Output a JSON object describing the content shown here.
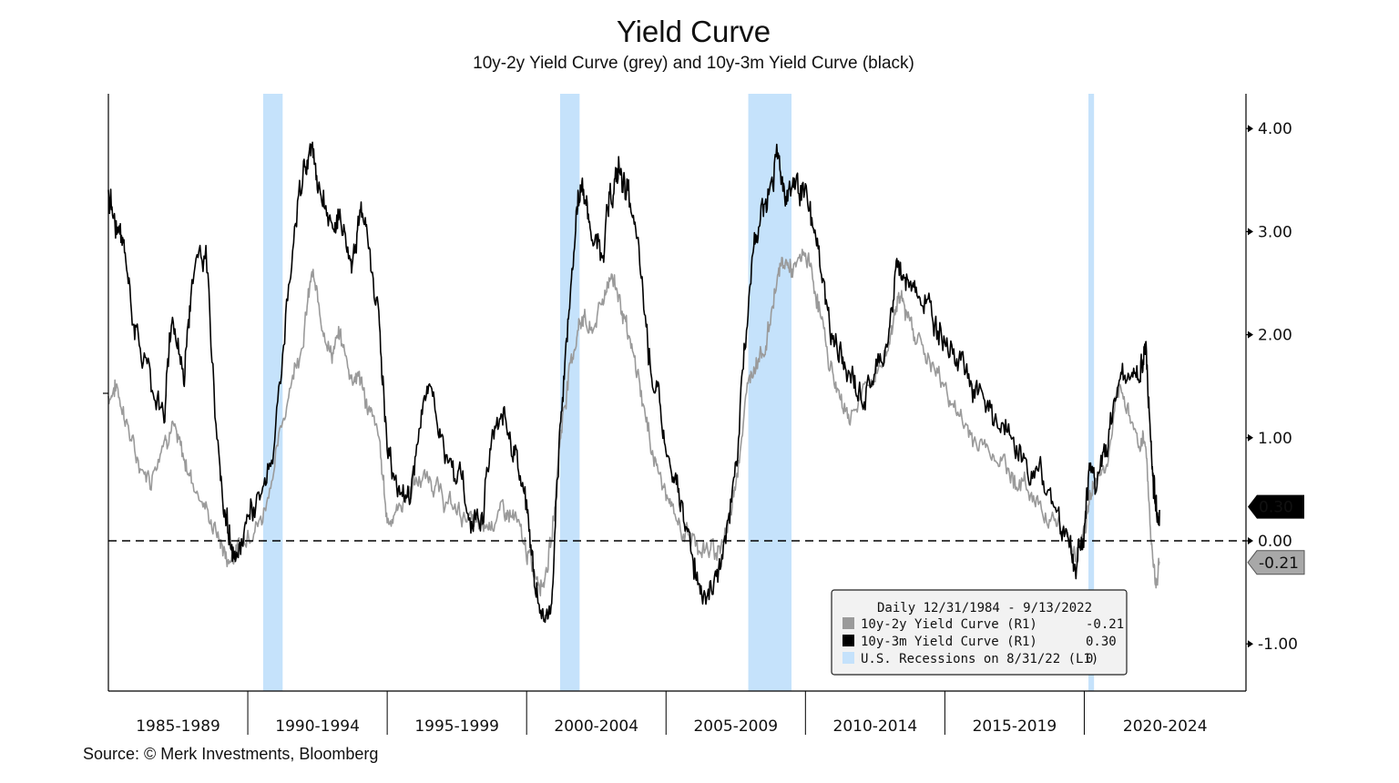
{
  "title": "Yield Curve",
  "subtitle": "10y-2y Yield Curve (grey) and 10y-3m Yield Curve (black)",
  "source": "Source: © Merk Investments, Bloomberg",
  "colors": {
    "grey_series": "#9a9a9a",
    "black_series": "#000000",
    "recession": "#c5e2fb",
    "zero_line": "#000000"
  },
  "chart_data": {
    "type": "line",
    "x_unit": "year",
    "xlim": [
      1985.0,
      2025.8
    ],
    "ylim": [
      -1.45,
      4.35
    ],
    "y_ticks": [
      4.0,
      3.0,
      2.0,
      1.0,
      0.0,
      -1.0
    ],
    "y_tick_labels": [
      "4.00",
      "3.00",
      "2.00",
      "1.00",
      "0.00",
      "-1.00"
    ],
    "reference_line": {
      "y": 0.0,
      "style": "dashed"
    },
    "categories": [
      "1985-1989",
      "1990-1994",
      "1995-1999",
      "2000-2004",
      "2005-2009",
      "2010-2014",
      "2015-2019",
      "2020-2024"
    ],
    "category_boundaries": [
      1990.0,
      1995.0,
      2000.0,
      2005.0,
      2010.0,
      2015.0,
      2020.0
    ],
    "recessions": [
      {
        "start": 1990.55,
        "end": 1991.25
      },
      {
        "start": 2001.2,
        "end": 2001.9
      },
      {
        "start": 2007.95,
        "end": 2009.5
      },
      {
        "start": 2020.15,
        "end": 2020.35
      }
    ],
    "series": [
      {
        "name": "10y-3m Yield Curve (R1)",
        "last_value": 0.3,
        "last_label": "0.30",
        "x": [
          1985.0,
          1985.3,
          1985.6,
          1986.0,
          1986.5,
          1987.0,
          1987.3,
          1987.7,
          1988.0,
          1988.5,
          1989.0,
          1989.3,
          1989.6,
          1990.0,
          1990.5,
          1991.0,
          1991.5,
          1992.0,
          1992.3,
          1992.6,
          1993.0,
          1993.3,
          1993.7,
          1994.0,
          1994.3,
          1994.7,
          1995.0,
          1995.4,
          1995.8,
          1996.2,
          1996.6,
          1997.0,
          1997.5,
          1998.0,
          1998.4,
          1998.8,
          1999.2,
          1999.6,
          2000.0,
          2000.3,
          2000.6,
          2000.9,
          2001.2,
          2001.5,
          2001.8,
          2002.0,
          2002.3,
          2002.7,
          2003.0,
          2003.3,
          2003.6,
          2004.0,
          2004.4,
          2004.8,
          2005.2,
          2005.6,
          2006.0,
          2006.4,
          2006.8,
          2007.2,
          2007.6,
          2008.0,
          2008.3,
          2008.6,
          2009.0,
          2009.3,
          2009.6,
          2010.0,
          2010.4,
          2010.8,
          2011.2,
          2011.6,
          2012.0,
          2012.5,
          2013.0,
          2013.3,
          2013.6,
          2014.0,
          2014.5,
          2015.0,
          2015.5,
          2016.0,
          2016.5,
          2017.0,
          2017.5,
          2018.0,
          2018.5,
          2019.0,
          2019.4,
          2019.7,
          2020.0,
          2020.2,
          2020.4,
          2020.8,
          2021.2,
          2021.6,
          2022.0,
          2022.2,
          2022.4,
          2022.55,
          2022.7
        ],
        "y": [
          3.4,
          3.0,
          2.8,
          2.0,
          1.6,
          1.2,
          2.2,
          1.6,
          2.6,
          2.8,
          0.6,
          0.1,
          -0.3,
          0.3,
          0.4,
          1.0,
          2.5,
          3.6,
          3.8,
          3.4,
          3.0,
          3.2,
          2.7,
          3.2,
          2.9,
          2.2,
          0.9,
          0.5,
          0.4,
          1.2,
          1.6,
          0.9,
          0.7,
          0.2,
          0.3,
          1.0,
          1.2,
          0.9,
          0.3,
          -0.4,
          -0.8,
          -0.6,
          1.0,
          2.2,
          3.2,
          3.5,
          3.0,
          2.8,
          3.3,
          3.6,
          3.4,
          2.8,
          1.8,
          1.2,
          0.6,
          0.3,
          -0.2,
          -0.5,
          -0.4,
          0.1,
          1.0,
          2.5,
          3.1,
          3.3,
          3.7,
          3.4,
          3.5,
          3.3,
          2.9,
          2.2,
          1.8,
          1.6,
          1.4,
          1.6,
          2.0,
          2.7,
          2.5,
          2.5,
          2.2,
          2.0,
          1.8,
          1.5,
          1.3,
          1.1,
          0.9,
          0.7,
          0.6,
          0.3,
          0.1,
          -0.3,
          0.1,
          0.8,
          0.6,
          0.8,
          1.6,
          1.6,
          1.6,
          1.9,
          0.9,
          0.35,
          0.3
        ]
      },
      {
        "name": "10y-2y Yield Curve (R1)",
        "last_value": -0.21,
        "last_label": "-0.21",
        "x": [
          1985.0,
          1985.3,
          1985.6,
          1986.0,
          1986.5,
          1987.0,
          1987.3,
          1987.7,
          1988.0,
          1988.5,
          1989.0,
          1989.3,
          1989.6,
          1990.0,
          1990.5,
          1991.0,
          1991.5,
          1992.0,
          1992.3,
          1992.6,
          1993.0,
          1993.3,
          1993.7,
          1994.0,
          1994.3,
          1994.7,
          1995.0,
          1995.4,
          1995.8,
          1996.2,
          1996.6,
          1997.0,
          1997.5,
          1998.0,
          1998.4,
          1998.8,
          1999.2,
          1999.6,
          2000.0,
          2000.3,
          2000.6,
          2000.9,
          2001.2,
          2001.5,
          2001.8,
          2002.0,
          2002.3,
          2002.7,
          2003.0,
          2003.3,
          2003.6,
          2004.0,
          2004.4,
          2004.8,
          2005.2,
          2005.6,
          2006.0,
          2006.4,
          2006.8,
          2007.2,
          2007.6,
          2008.0,
          2008.3,
          2008.6,
          2009.0,
          2009.3,
          2009.6,
          2010.0,
          2010.4,
          2010.8,
          2011.2,
          2011.6,
          2012.0,
          2012.5,
          2013.0,
          2013.3,
          2013.6,
          2014.0,
          2014.5,
          2015.0,
          2015.5,
          2016.0,
          2016.5,
          2017.0,
          2017.5,
          2018.0,
          2018.5,
          2019.0,
          2019.4,
          2019.7,
          2020.0,
          2020.2,
          2020.4,
          2020.8,
          2021.2,
          2021.6,
          2022.0,
          2022.2,
          2022.4,
          2022.55,
          2022.7
        ],
        "y": [
          1.4,
          1.5,
          1.2,
          0.8,
          0.6,
          1.0,
          1.1,
          0.8,
          0.6,
          0.3,
          0.0,
          -0.2,
          -0.1,
          0.1,
          0.2,
          0.8,
          1.5,
          2.0,
          2.6,
          2.2,
          1.8,
          2.0,
          1.6,
          1.6,
          1.3,
          1.0,
          0.2,
          0.3,
          0.5,
          0.6,
          0.6,
          0.4,
          0.3,
          0.2,
          0.1,
          0.2,
          0.3,
          0.2,
          -0.1,
          -0.3,
          -0.4,
          0.0,
          1.0,
          1.6,
          2.0,
          2.2,
          2.0,
          2.3,
          2.6,
          2.4,
          2.0,
          1.6,
          1.0,
          0.6,
          0.3,
          0.1,
          0.0,
          -0.1,
          -0.1,
          0.1,
          0.8,
          1.6,
          1.8,
          1.9,
          2.6,
          2.7,
          2.6,
          2.8,
          2.4,
          1.8,
          1.4,
          1.2,
          1.4,
          1.6,
          1.9,
          2.4,
          2.2,
          2.0,
          1.7,
          1.5,
          1.2,
          1.0,
          0.9,
          0.8,
          0.6,
          0.5,
          0.3,
          0.2,
          0.0,
          -0.1,
          0.1,
          0.4,
          0.6,
          0.7,
          1.4,
          1.3,
          0.9,
          1.0,
          0.0,
          -0.4,
          -0.21
        ]
      }
    ],
    "legend": {
      "placement": "bottom-right",
      "header": "Daily 12/31/1984 - 9/13/2022",
      "items": [
        {
          "label": "10y-2y Yield Curve (R1)",
          "value": "-0.21",
          "color": "#9a9a9a"
        },
        {
          "label": "10y-3m Yield Curve (R1)",
          "value": "0.30",
          "color": "#000000"
        },
        {
          "label": "U.S. Recessions on 8/31/22 (L1)",
          "value": "0",
          "color": "#c5e2fb"
        }
      ]
    }
  }
}
